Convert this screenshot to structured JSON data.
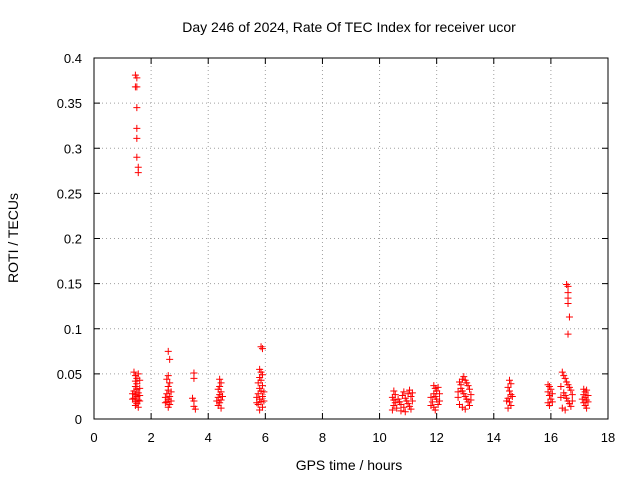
{
  "chart_data": {
    "type": "scatter",
    "title": "Day 246 of 2024, Rate Of TEC Index for receiver ucor",
    "xlabel": "GPS time / hours",
    "ylabel": "ROTI / TECUs",
    "xlim": [
      0,
      18
    ],
    "ylim": [
      0,
      0.4
    ],
    "x_ticks": [
      0,
      2,
      4,
      6,
      8,
      10,
      12,
      14,
      16,
      18
    ],
    "x_tick_labels": [
      "0",
      "2",
      "4",
      "6",
      "8",
      "10",
      "12",
      "14",
      "16",
      "18"
    ],
    "y_ticks": [
      0,
      0.05,
      0.1,
      0.15,
      0.2,
      0.25,
      0.3,
      0.35,
      0.4
    ],
    "y_tick_labels": [
      "0",
      "0.05",
      "0.1",
      "0.15",
      "0.2",
      "0.25",
      "0.3",
      "0.35",
      "0.4"
    ],
    "grid": true,
    "marker": "plus",
    "marker_color": "#ff0000",
    "points": [
      [
        1.45,
        0.381
      ],
      [
        1.5,
        0.378
      ],
      [
        1.45,
        0.368
      ],
      [
        1.5,
        0.368
      ],
      [
        1.5,
        0.345
      ],
      [
        1.5,
        0.322
      ],
      [
        1.5,
        0.311
      ],
      [
        1.5,
        0.29
      ],
      [
        1.55,
        0.279
      ],
      [
        1.55,
        0.273
      ],
      [
        1.4,
        0.052
      ],
      [
        1.45,
        0.048
      ],
      [
        1.5,
        0.045
      ],
      [
        1.45,
        0.042
      ],
      [
        1.5,
        0.039
      ],
      [
        1.45,
        0.036
      ],
      [
        1.5,
        0.033
      ],
      [
        1.4,
        0.031
      ],
      [
        1.55,
        0.029
      ],
      [
        1.45,
        0.027
      ],
      [
        1.5,
        0.025
      ],
      [
        1.4,
        0.023
      ],
      [
        1.55,
        0.021
      ],
      [
        1.45,
        0.019
      ],
      [
        1.5,
        0.017
      ],
      [
        1.45,
        0.015
      ],
      [
        1.55,
        0.05
      ],
      [
        1.6,
        0.043
      ],
      [
        1.6,
        0.034
      ],
      [
        1.6,
        0.026
      ],
      [
        1.6,
        0.02
      ],
      [
        1.35,
        0.028
      ],
      [
        1.35,
        0.022
      ],
      [
        1.55,
        0.013
      ],
      [
        2.6,
        0.075
      ],
      [
        2.65,
        0.066
      ],
      [
        2.6,
        0.048
      ],
      [
        2.55,
        0.044
      ],
      [
        2.65,
        0.04
      ],
      [
        2.6,
        0.036
      ],
      [
        2.6,
        0.032
      ],
      [
        2.55,
        0.028
      ],
      [
        2.65,
        0.025
      ],
      [
        2.6,
        0.022
      ],
      [
        2.55,
        0.019
      ],
      [
        2.65,
        0.016
      ],
      [
        2.6,
        0.013
      ],
      [
        2.7,
        0.03
      ],
      [
        2.7,
        0.02
      ],
      [
        2.5,
        0.024
      ],
      [
        2.5,
        0.018
      ],
      [
        3.5,
        0.051
      ],
      [
        3.5,
        0.045
      ],
      [
        3.45,
        0.023
      ],
      [
        3.5,
        0.02
      ],
      [
        3.5,
        0.014
      ],
      [
        3.55,
        0.011
      ],
      [
        4.4,
        0.044
      ],
      [
        4.45,
        0.04
      ],
      [
        4.4,
        0.036
      ],
      [
        4.35,
        0.033
      ],
      [
        4.45,
        0.03
      ],
      [
        4.4,
        0.027
      ],
      [
        4.35,
        0.024
      ],
      [
        4.45,
        0.021
      ],
      [
        4.4,
        0.018
      ],
      [
        4.35,
        0.015
      ],
      [
        4.45,
        0.012
      ],
      [
        4.5,
        0.025
      ],
      [
        4.3,
        0.02
      ],
      [
        5.85,
        0.08
      ],
      [
        5.9,
        0.078
      ],
      [
        5.8,
        0.055
      ],
      [
        5.85,
        0.052
      ],
      [
        5.9,
        0.049
      ],
      [
        5.8,
        0.046
      ],
      [
        5.85,
        0.043
      ],
      [
        5.75,
        0.04
      ],
      [
        5.9,
        0.037
      ],
      [
        5.8,
        0.034
      ],
      [
        5.85,
        0.031
      ],
      [
        5.75,
        0.028
      ],
      [
        5.9,
        0.025
      ],
      [
        5.8,
        0.022
      ],
      [
        5.85,
        0.019
      ],
      [
        5.75,
        0.016
      ],
      [
        5.9,
        0.013
      ],
      [
        5.8,
        0.01
      ],
      [
        5.95,
        0.03
      ],
      [
        5.95,
        0.02
      ],
      [
        5.7,
        0.024
      ],
      [
        5.7,
        0.018
      ],
      [
        10.5,
        0.031
      ],
      [
        10.55,
        0.027
      ],
      [
        10.45,
        0.024
      ],
      [
        10.5,
        0.021
      ],
      [
        10.55,
        0.018
      ],
      [
        10.5,
        0.015
      ],
      [
        10.6,
        0.012
      ],
      [
        10.45,
        0.01
      ],
      [
        10.65,
        0.022
      ],
      [
        10.7,
        0.019
      ],
      [
        10.75,
        0.016
      ],
      [
        10.8,
        0.026
      ],
      [
        10.85,
        0.03
      ],
      [
        10.9,
        0.023
      ],
      [
        10.95,
        0.02
      ],
      [
        11.0,
        0.017
      ],
      [
        11.05,
        0.014
      ],
      [
        11.1,
        0.011
      ],
      [
        11.0,
        0.028
      ],
      [
        11.05,
        0.032
      ],
      [
        11.1,
        0.025
      ],
      [
        10.9,
        0.008
      ],
      [
        11.15,
        0.02
      ],
      [
        10.85,
        0.013
      ],
      [
        10.75,
        0.009
      ],
      [
        11.15,
        0.029
      ],
      [
        11.9,
        0.037
      ],
      [
        11.95,
        0.034
      ],
      [
        12.0,
        0.031
      ],
      [
        11.9,
        0.028
      ],
      [
        11.95,
        0.025
      ],
      [
        12.0,
        0.022
      ],
      [
        11.85,
        0.019
      ],
      [
        12.05,
        0.016
      ],
      [
        11.9,
        0.013
      ],
      [
        11.95,
        0.01
      ],
      [
        12.05,
        0.035
      ],
      [
        12.1,
        0.028
      ],
      [
        12.1,
        0.02
      ],
      [
        11.8,
        0.024
      ],
      [
        11.8,
        0.015
      ],
      [
        12.8,
        0.041
      ],
      [
        12.85,
        0.038
      ],
      [
        12.9,
        0.044
      ],
      [
        12.95,
        0.047
      ],
      [
        13.0,
        0.043
      ],
      [
        13.05,
        0.04
      ],
      [
        13.1,
        0.037
      ],
      [
        12.85,
        0.034
      ],
      [
        12.9,
        0.031
      ],
      [
        12.95,
        0.028
      ],
      [
        13.0,
        0.025
      ],
      [
        13.05,
        0.022
      ],
      [
        13.1,
        0.019
      ],
      [
        12.8,
        0.016
      ],
      [
        12.9,
        0.013
      ],
      [
        13.0,
        0.011
      ],
      [
        13.15,
        0.033
      ],
      [
        13.2,
        0.027
      ],
      [
        13.2,
        0.021
      ],
      [
        12.75,
        0.03
      ],
      [
        12.75,
        0.024
      ],
      [
        13.15,
        0.015
      ],
      [
        14.55,
        0.043
      ],
      [
        14.6,
        0.039
      ],
      [
        14.5,
        0.035
      ],
      [
        14.55,
        0.031
      ],
      [
        14.6,
        0.027
      ],
      [
        14.5,
        0.023
      ],
      [
        14.55,
        0.019
      ],
      [
        14.6,
        0.015
      ],
      [
        14.5,
        0.012
      ],
      [
        14.65,
        0.025
      ],
      [
        14.45,
        0.02
      ],
      [
        15.9,
        0.038
      ],
      [
        15.95,
        0.036
      ],
      [
        16.0,
        0.033
      ],
      [
        15.9,
        0.03
      ],
      [
        15.95,
        0.026
      ],
      [
        16.0,
        0.022
      ],
      [
        15.9,
        0.018
      ],
      [
        15.95,
        0.015
      ],
      [
        16.05,
        0.028
      ],
      [
        16.05,
        0.019
      ],
      [
        16.55,
        0.149
      ],
      [
        16.6,
        0.147
      ],
      [
        16.6,
        0.14
      ],
      [
        16.6,
        0.134
      ],
      [
        16.6,
        0.128
      ],
      [
        16.65,
        0.113
      ],
      [
        16.6,
        0.094
      ],
      [
        16.4,
        0.052
      ],
      [
        16.45,
        0.048
      ],
      [
        16.5,
        0.045
      ],
      [
        16.55,
        0.041
      ],
      [
        16.6,
        0.038
      ],
      [
        16.65,
        0.035
      ],
      [
        16.7,
        0.032
      ],
      [
        16.45,
        0.029
      ],
      [
        16.5,
        0.026
      ],
      [
        16.55,
        0.023
      ],
      [
        16.6,
        0.02
      ],
      [
        16.65,
        0.017
      ],
      [
        16.7,
        0.014
      ],
      [
        16.35,
        0.036
      ],
      [
        16.35,
        0.024
      ],
      [
        16.75,
        0.027
      ],
      [
        16.75,
        0.02
      ],
      [
        16.4,
        0.012
      ],
      [
        16.5,
        0.01
      ],
      [
        17.15,
        0.033
      ],
      [
        17.2,
        0.03
      ],
      [
        17.25,
        0.032
      ],
      [
        17.15,
        0.027
      ],
      [
        17.2,
        0.024
      ],
      [
        17.25,
        0.021
      ],
      [
        17.15,
        0.018
      ],
      [
        17.2,
        0.015
      ],
      [
        17.25,
        0.012
      ],
      [
        17.3,
        0.026
      ],
      [
        17.3,
        0.019
      ],
      [
        17.1,
        0.022
      ]
    ]
  }
}
